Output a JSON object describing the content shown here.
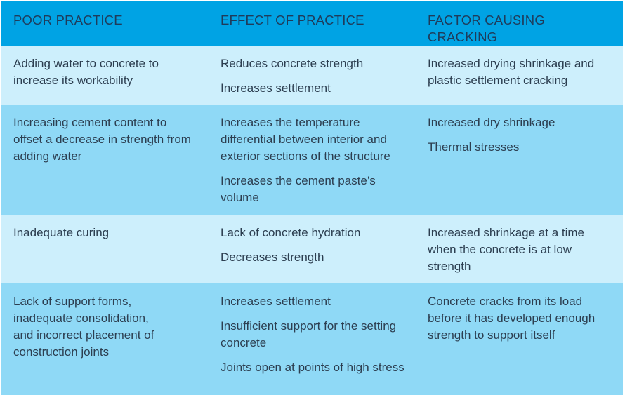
{
  "headers": [
    "POOR PRACTICE",
    "EFFECT OF PRACTICE",
    "FACTOR CAUSING CRACKING"
  ],
  "rows": [
    {
      "practice": [
        "Adding water to concrete to increase its workability"
      ],
      "effects": [
        "Reduces concrete strength",
        "Increases settlement"
      ],
      "factors": [
        "Increased drying shrinkage and plastic settlement cracking"
      ]
    },
    {
      "practice": [
        "Increasing cement content to offset a decrease in strength from adding water"
      ],
      "effects": [
        "Increases the temperature differential between interior and exterior sections of the structure",
        "Increases the cement paste’s volume"
      ],
      "factors": [
        "Increased dry shrinkage",
        "Thermal stresses"
      ]
    },
    {
      "practice": [
        "Inadequate curing"
      ],
      "effects": [
        "Lack of concrete hydration",
        "Decreases strength"
      ],
      "factors": [
        "Increased shrinkage at a time when the concrete is at low strength"
      ]
    },
    {
      "practice": [
        "Lack of support forms, inadequate consolidation, and incorrect placement of construction joints"
      ],
      "effects": [
        "Increases settlement",
        "Insufficient support for the setting concrete",
        "Joints open at points of high stress"
      ],
      "factors": [
        "Concrete cracks from its load before it has  developed enough strength to support itself"
      ]
    }
  ],
  "colors": {
    "header_bg": "#00a3e4",
    "row_light": "#cdeffc",
    "row_dark": "#8fd9f6",
    "header_text": "#1f3b5a",
    "body_text": "#2c3e50"
  }
}
